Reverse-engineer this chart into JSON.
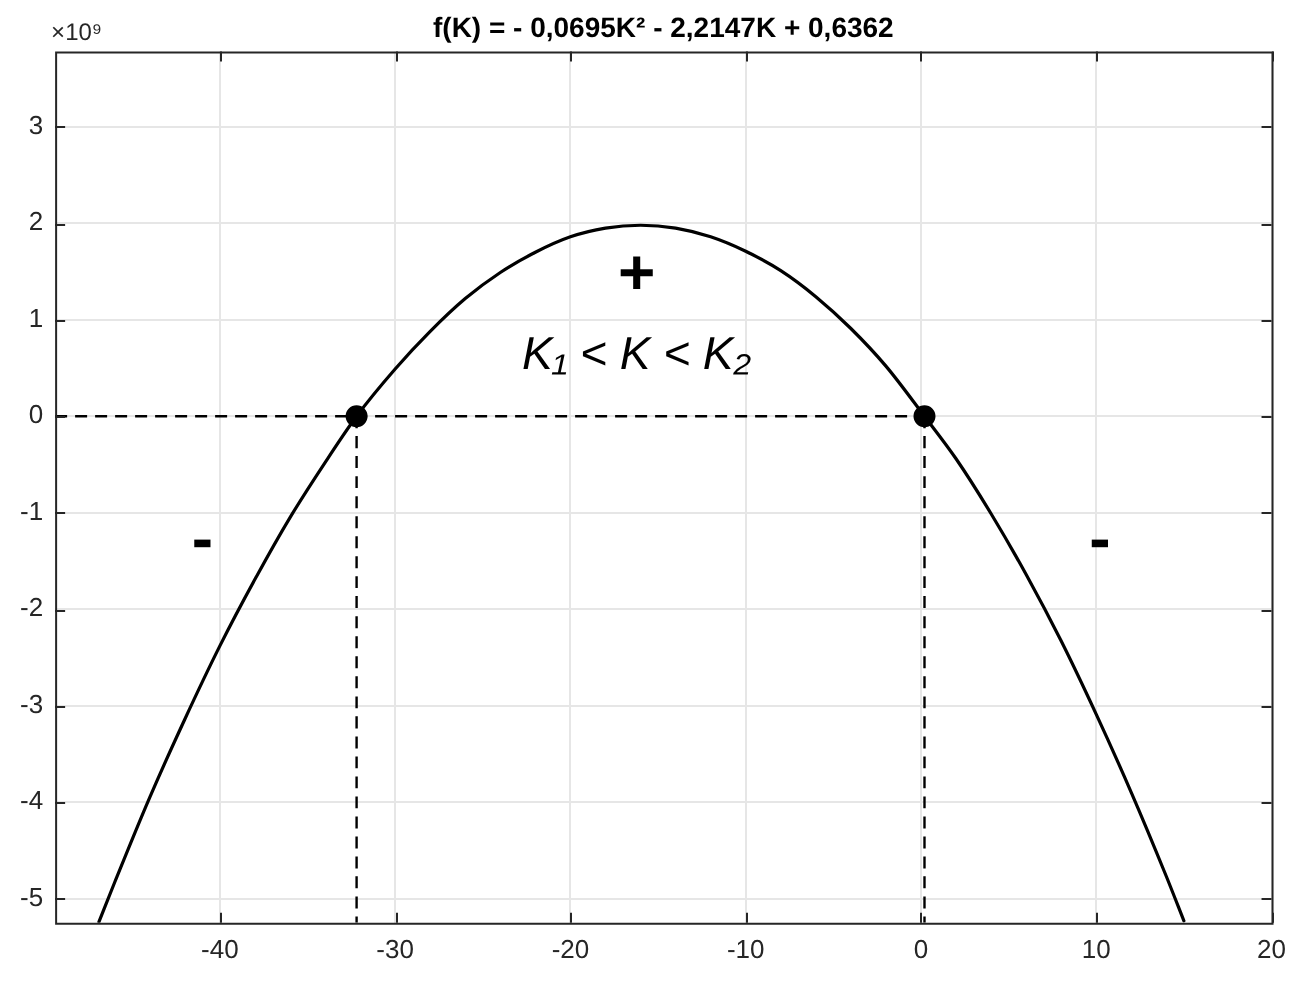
{
  "chart_data": {
    "type": "line",
    "title": "f(K) = - 0,0695K² - 2,2147K + 0,6362",
    "xlim": [
      -49.4,
      20
    ],
    "xticks": [
      -40,
      -30,
      -20,
      -10,
      0,
      10,
      20
    ],
    "ylim": [
      -5.25,
      3.78
    ],
    "yticks": [
      -5,
      -4,
      -3,
      -2,
      -1,
      0,
      1,
      2,
      3
    ],
    "grid": true,
    "legend": false,
    "series": [
      {
        "color": "#000000",
        "marker": "none",
        "line_style": "solid",
        "x": [
          -46.9,
          -46,
          -44,
          -42,
          -40,
          -38,
          -36,
          -34,
          -32.2,
          -30,
          -28,
          -26,
          -24,
          -22,
          -20,
          -18,
          -16,
          -14,
          -12,
          -10,
          -8,
          -6,
          -4,
          -2,
          0.2,
          2,
          4,
          6,
          8,
          10,
          12,
          14,
          15
        ],
        "values": [
          -5.24,
          -4.83,
          -3.95,
          -3.14,
          -2.38,
          -1.69,
          -1.05,
          -0.48,
          0,
          0.49,
          0.88,
          1.22,
          1.49,
          1.7,
          1.86,
          1.95,
          1.98,
          1.95,
          1.86,
          1.71,
          1.51,
          1.24,
          0.91,
          0.52,
          0,
          -0.44,
          -1.01,
          -1.64,
          -2.33,
          -3.09,
          -3.9,
          -4.77,
          -5.23
        ]
      },
      {
        "color": "#000000",
        "marker": "none",
        "line_style": "dashed",
        "x": [
          -49.4,
          0.2
        ],
        "values": [
          0,
          0
        ]
      },
      {
        "color": "#000000",
        "marker": "none",
        "line_style": "dashed",
        "x": [
          -32.2,
          -32.2
        ],
        "values": [
          0,
          -5.25
        ]
      },
      {
        "color": "#000000",
        "marker": "none",
        "line_style": "dashed",
        "x": [
          0.2,
          0.2
        ],
        "values": [
          0,
          -5.25
        ]
      },
      {
        "type": "scatter",
        "color": "#000000",
        "marker": "circle",
        "x": [
          -32.2,
          0.2
        ],
        "values": [
          0,
          0
        ]
      }
    ],
    "annotations": [
      "×10⁹",
      "+",
      "K₁ < K < K₂",
      "-",
      "-"
    ]
  }
}
